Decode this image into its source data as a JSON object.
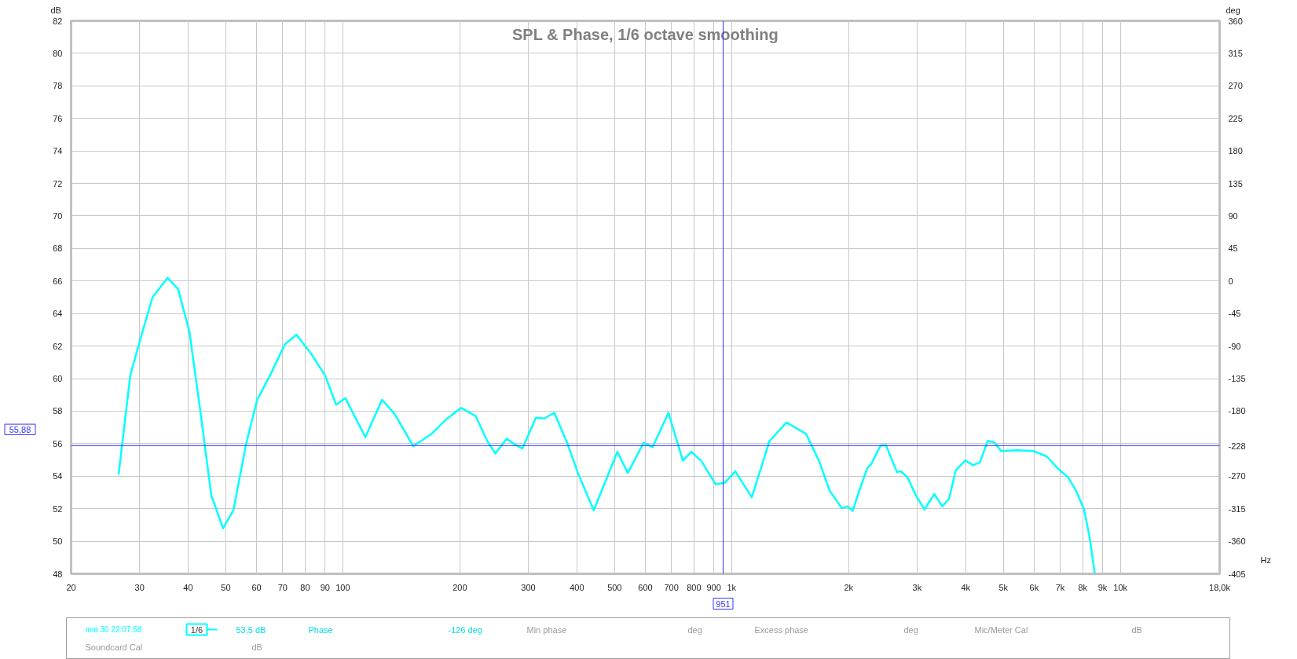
{
  "chart_data": {
    "type": "line",
    "title": "SPL & Phase, 1/6 octave smoothing",
    "xlabel": "Hz",
    "ylabel": "dB",
    "y2label": "deg",
    "log": "x",
    "xlim": [
      20,
      18000
    ],
    "xticks": [
      20,
      30,
      40,
      50,
      60,
      70,
      80,
      90,
      100,
      200,
      300,
      400,
      500,
      600,
      700,
      800,
      900,
      {
        "value": 1000,
        "label": "1k"
      },
      {
        "value": 2000,
        "label": "2k"
      },
      {
        "value": 3000,
        "label": "3k"
      },
      {
        "value": 4000,
        "label": "4k"
      },
      {
        "value": 5000,
        "label": "5k"
      },
      {
        "value": 6000,
        "label": "6k"
      },
      {
        "value": 7000,
        "label": "7k"
      },
      {
        "value": 8000,
        "label": "8k"
      },
      {
        "value": 9000,
        "label": "9k"
      },
      {
        "value": 10000,
        "label": "10k"
      },
      {
        "value": 18000,
        "label": "18,0k"
      }
    ],
    "ylim": [
      48,
      82
    ],
    "yticks": [
      48,
      50,
      52,
      54,
      56,
      58,
      60,
      62,
      64,
      66,
      68,
      70,
      72,
      74,
      76,
      78,
      80,
      82
    ],
    "y2lim": [
      -405,
      360
    ],
    "y2ticks": [
      -405,
      -360,
      -315,
      -270,
      {
        "value": -228,
        "label": "-228"
      },
      -180,
      -135,
      -90,
      -45,
      0,
      45,
      90,
      135,
      180,
      225,
      270,
      315,
      360
    ],
    "grid": true,
    "legend": "bottom",
    "line_style": "solid",
    "series": [
      {
        "name": "янв 30 22:07:58",
        "color": "#00ffff",
        "x": [
          26.5,
          28.4,
          30.2,
          32.4,
          35.4,
          37.7,
          40.3,
          43.0,
          45.9,
          49.2,
          52.3,
          56.4,
          60.2,
          65.0,
          70.9,
          76.0,
          82.5,
          90.0,
          96.1,
          101.5,
          114.3,
          126.1,
          136.1,
          151.7,
          169.1,
          184.5,
          201.6,
          219.6,
          235.4,
          246.7,
          263.8,
          277.2,
          289.6,
          313.9,
          329.9,
          349.9,
          378.2,
          402.4,
          441.9,
          508.3,
          540.6,
          593.6,
          626.6,
          688.0,
          749.2,
          787.4,
          835.1,
          909.8,
          960.6,
          1022,
          1127,
          1251,
          1384,
          1461,
          1555,
          1681,
          1788,
          1921,
          1984,
          2048,
          2148,
          2234,
          2288,
          2418,
          2496,
          2661,
          2725,
          2835,
          2973,
          3132,
          3321,
          3483,
          3624,
          3770,
          3985,
          4179,
          4348,
          4559,
          4743,
          4934,
          5428,
          5971,
          6463,
          6885,
          7335,
          7693,
          8066,
          8326,
          8594
        ],
        "values": [
          54.1,
          60.2,
          62.5,
          65.0,
          66.2,
          65.5,
          62.9,
          58.0,
          52.8,
          50.8,
          51.9,
          56.0,
          58.7,
          60.2,
          62.1,
          62.7,
          61.6,
          60.2,
          58.4,
          58.8,
          56.4,
          58.7,
          57.8,
          55.85,
          56.6,
          57.5,
          58.2,
          57.7,
          56.15,
          55.4,
          56.3,
          55.95,
          55.7,
          57.6,
          57.55,
          57.9,
          56.0,
          54.2,
          51.9,
          55.5,
          54.2,
          56.05,
          55.8,
          57.9,
          54.95,
          55.5,
          54.95,
          53.5,
          53.6,
          54.3,
          52.7,
          56.15,
          57.3,
          56.98,
          56.6,
          54.9,
          53.1,
          52.03,
          52.15,
          51.87,
          53.36,
          54.5,
          54.76,
          55.9,
          55.9,
          54.26,
          54.3,
          53.93,
          52.86,
          51.95,
          52.9,
          52.15,
          52.6,
          54.35,
          54.96,
          54.68,
          54.84,
          56.17,
          56.08,
          55.55,
          55.59,
          55.55,
          55.22,
          54.5,
          53.93,
          53.1,
          51.95,
          50.3,
          48.0
        ]
      }
    ],
    "ref_lines": [
      {
        "axis": "y",
        "value": 55.88,
        "label": "55,88",
        "color": "#3333ff"
      },
      {
        "axis": "x",
        "value": 951,
        "label": "951",
        "color": "#3333ff"
      }
    ],
    "annotations": [
      "1/6",
      "53,5 dB",
      "Phase",
      "-126 deg",
      "Min phase",
      "deg",
      "Excess phase",
      "deg",
      "Mic/Meter Cal",
      "dB",
      "Soundcard Cal",
      "dB"
    ]
  }
}
